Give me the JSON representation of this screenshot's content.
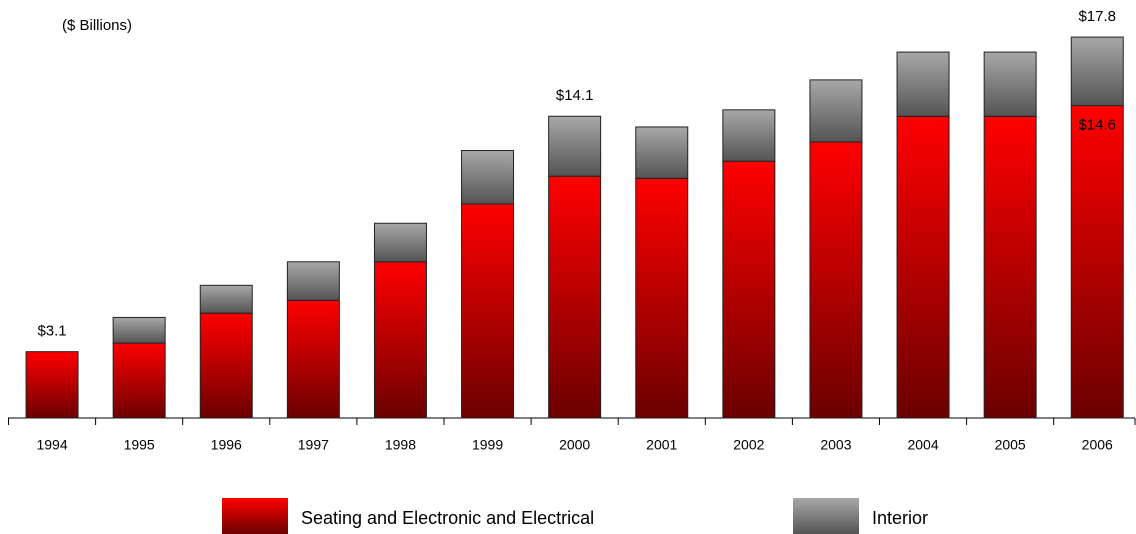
{
  "chart_data": {
    "type": "stacked_bar",
    "subtitle": "($ Billions)",
    "categories": [
      "1994",
      "1995",
      "1996",
      "1997",
      "1998",
      "1999",
      "2000",
      "2001",
      "2002",
      "2003",
      "2004",
      "2005",
      "2006"
    ],
    "series": [
      {
        "name": "Seating and Electronic and Electrical",
        "color": "#ff0000",
        "values": [
          3.1,
          3.5,
          4.9,
          5.5,
          7.3,
          10.0,
          11.3,
          11.2,
          12.0,
          12.9,
          14.1,
          14.1,
          14.6
        ]
      },
      {
        "name": "Interior",
        "color": "#a8a8a8",
        "values": [
          0,
          1.2,
          1.3,
          1.8,
          1.8,
          2.5,
          2.8,
          2.4,
          2.4,
          2.9,
          3.0,
          3.0,
          3.2
        ]
      }
    ],
    "annotations": [
      {
        "category": "1994",
        "value": 3.1,
        "label": "$3.1"
      },
      {
        "category": "2000",
        "value": 14.1,
        "label": "$14.1"
      },
      {
        "category": "2006",
        "value": 14.6,
        "label": "$14.6"
      },
      {
        "category": "2006",
        "value": 17.8,
        "label": "$17.8"
      }
    ],
    "ylim": [
      0,
      18.3
    ],
    "legend": "bottom"
  }
}
